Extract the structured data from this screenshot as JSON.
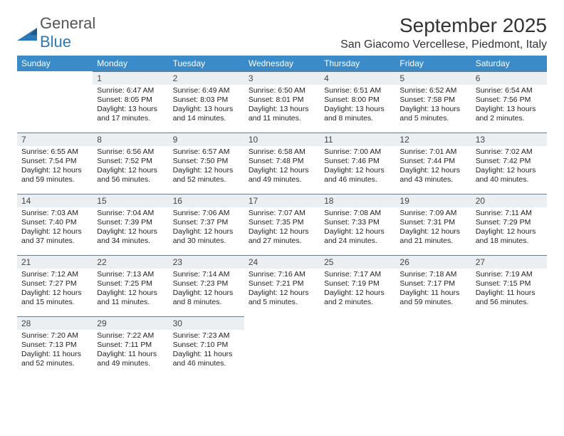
{
  "logo": {
    "word1": "General",
    "word2": "Blue"
  },
  "header": {
    "title": "September 2025",
    "location": "San Giacomo Vercellese, Piedmont, Italy"
  },
  "colors": {
    "header_bg": "#3b8bc8",
    "header_text": "#ffffff",
    "daynum_bg": "#eceff1",
    "daynum_border": "#6b7b88",
    "text": "#222222",
    "logo_gray": "#555555",
    "logo_blue": "#2a7ab9"
  },
  "weekdays": [
    "Sunday",
    "Monday",
    "Tuesday",
    "Wednesday",
    "Thursday",
    "Friday",
    "Saturday"
  ],
  "weeks": [
    [
      {
        "day": "",
        "lines": []
      },
      {
        "day": "1",
        "lines": [
          "Sunrise: 6:47 AM",
          "Sunset: 8:05 PM",
          "Daylight: 13 hours",
          "and 17 minutes."
        ]
      },
      {
        "day": "2",
        "lines": [
          "Sunrise: 6:49 AM",
          "Sunset: 8:03 PM",
          "Daylight: 13 hours",
          "and 14 minutes."
        ]
      },
      {
        "day": "3",
        "lines": [
          "Sunrise: 6:50 AM",
          "Sunset: 8:01 PM",
          "Daylight: 13 hours",
          "and 11 minutes."
        ]
      },
      {
        "day": "4",
        "lines": [
          "Sunrise: 6:51 AM",
          "Sunset: 8:00 PM",
          "Daylight: 13 hours",
          "and 8 minutes."
        ]
      },
      {
        "day": "5",
        "lines": [
          "Sunrise: 6:52 AM",
          "Sunset: 7:58 PM",
          "Daylight: 13 hours",
          "and 5 minutes."
        ]
      },
      {
        "day": "6",
        "lines": [
          "Sunrise: 6:54 AM",
          "Sunset: 7:56 PM",
          "Daylight: 13 hours",
          "and 2 minutes."
        ]
      }
    ],
    [
      {
        "day": "7",
        "lines": [
          "Sunrise: 6:55 AM",
          "Sunset: 7:54 PM",
          "Daylight: 12 hours",
          "and 59 minutes."
        ]
      },
      {
        "day": "8",
        "lines": [
          "Sunrise: 6:56 AM",
          "Sunset: 7:52 PM",
          "Daylight: 12 hours",
          "and 56 minutes."
        ]
      },
      {
        "day": "9",
        "lines": [
          "Sunrise: 6:57 AM",
          "Sunset: 7:50 PM",
          "Daylight: 12 hours",
          "and 52 minutes."
        ]
      },
      {
        "day": "10",
        "lines": [
          "Sunrise: 6:58 AM",
          "Sunset: 7:48 PM",
          "Daylight: 12 hours",
          "and 49 minutes."
        ]
      },
      {
        "day": "11",
        "lines": [
          "Sunrise: 7:00 AM",
          "Sunset: 7:46 PM",
          "Daylight: 12 hours",
          "and 46 minutes."
        ]
      },
      {
        "day": "12",
        "lines": [
          "Sunrise: 7:01 AM",
          "Sunset: 7:44 PM",
          "Daylight: 12 hours",
          "and 43 minutes."
        ]
      },
      {
        "day": "13",
        "lines": [
          "Sunrise: 7:02 AM",
          "Sunset: 7:42 PM",
          "Daylight: 12 hours",
          "and 40 minutes."
        ]
      }
    ],
    [
      {
        "day": "14",
        "lines": [
          "Sunrise: 7:03 AM",
          "Sunset: 7:40 PM",
          "Daylight: 12 hours",
          "and 37 minutes."
        ]
      },
      {
        "day": "15",
        "lines": [
          "Sunrise: 7:04 AM",
          "Sunset: 7:39 PM",
          "Daylight: 12 hours",
          "and 34 minutes."
        ]
      },
      {
        "day": "16",
        "lines": [
          "Sunrise: 7:06 AM",
          "Sunset: 7:37 PM",
          "Daylight: 12 hours",
          "and 30 minutes."
        ]
      },
      {
        "day": "17",
        "lines": [
          "Sunrise: 7:07 AM",
          "Sunset: 7:35 PM",
          "Daylight: 12 hours",
          "and 27 minutes."
        ]
      },
      {
        "day": "18",
        "lines": [
          "Sunrise: 7:08 AM",
          "Sunset: 7:33 PM",
          "Daylight: 12 hours",
          "and 24 minutes."
        ]
      },
      {
        "day": "19",
        "lines": [
          "Sunrise: 7:09 AM",
          "Sunset: 7:31 PM",
          "Daylight: 12 hours",
          "and 21 minutes."
        ]
      },
      {
        "day": "20",
        "lines": [
          "Sunrise: 7:11 AM",
          "Sunset: 7:29 PM",
          "Daylight: 12 hours",
          "and 18 minutes."
        ]
      }
    ],
    [
      {
        "day": "21",
        "lines": [
          "Sunrise: 7:12 AM",
          "Sunset: 7:27 PM",
          "Daylight: 12 hours",
          "and 15 minutes."
        ]
      },
      {
        "day": "22",
        "lines": [
          "Sunrise: 7:13 AM",
          "Sunset: 7:25 PM",
          "Daylight: 12 hours",
          "and 11 minutes."
        ]
      },
      {
        "day": "23",
        "lines": [
          "Sunrise: 7:14 AM",
          "Sunset: 7:23 PM",
          "Daylight: 12 hours",
          "and 8 minutes."
        ]
      },
      {
        "day": "24",
        "lines": [
          "Sunrise: 7:16 AM",
          "Sunset: 7:21 PM",
          "Daylight: 12 hours",
          "and 5 minutes."
        ]
      },
      {
        "day": "25",
        "lines": [
          "Sunrise: 7:17 AM",
          "Sunset: 7:19 PM",
          "Daylight: 12 hours",
          "and 2 minutes."
        ]
      },
      {
        "day": "26",
        "lines": [
          "Sunrise: 7:18 AM",
          "Sunset: 7:17 PM",
          "Daylight: 11 hours",
          "and 59 minutes."
        ]
      },
      {
        "day": "27",
        "lines": [
          "Sunrise: 7:19 AM",
          "Sunset: 7:15 PM",
          "Daylight: 11 hours",
          "and 56 minutes."
        ]
      }
    ],
    [
      {
        "day": "28",
        "lines": [
          "Sunrise: 7:20 AM",
          "Sunset: 7:13 PM",
          "Daylight: 11 hours",
          "and 52 minutes."
        ]
      },
      {
        "day": "29",
        "lines": [
          "Sunrise: 7:22 AM",
          "Sunset: 7:11 PM",
          "Daylight: 11 hours",
          "and 49 minutes."
        ]
      },
      {
        "day": "30",
        "lines": [
          "Sunrise: 7:23 AM",
          "Sunset: 7:10 PM",
          "Daylight: 11 hours",
          "and 46 minutes."
        ]
      },
      {
        "day": "",
        "lines": []
      },
      {
        "day": "",
        "lines": []
      },
      {
        "day": "",
        "lines": []
      },
      {
        "day": "",
        "lines": []
      }
    ]
  ]
}
